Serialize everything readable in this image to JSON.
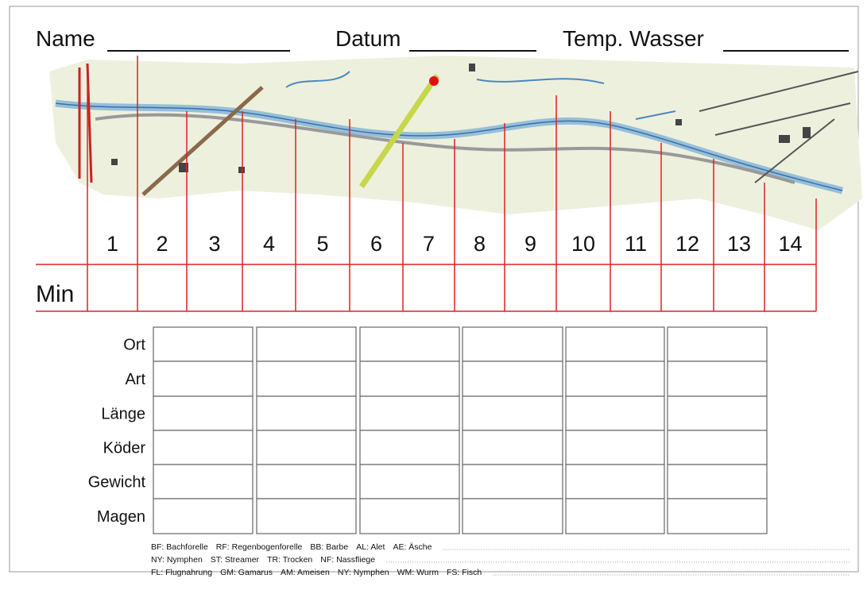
{
  "header": {
    "fields": [
      "Name",
      "Datum",
      "Temp. Wasser"
    ]
  },
  "sections": [
    1,
    2,
    3,
    4,
    5,
    6,
    7,
    8,
    9,
    10,
    11,
    12,
    13,
    14
  ],
  "time_label": "Min",
  "table": {
    "row_labels": [
      "Ort",
      "Art",
      "Länge",
      "Köder",
      "Gewicht",
      "Magen"
    ]
  },
  "legend": [
    [
      "BF: Bachforelle",
      "RF: Regenbogenforelle",
      "BB: Barbe",
      "AL: Alet",
      "AE: Äsche"
    ],
    [
      "NY: Nymphen",
      "ST: Streamer",
      "TR: Trocken",
      "NF: Nassfliege"
    ],
    [
      "FL: Flugnahrung",
      "GM: Gamarus",
      "AM: Ameisen",
      "NY: Nymphen",
      "WM: Wurm",
      "FS: Fisch"
    ]
  ]
}
